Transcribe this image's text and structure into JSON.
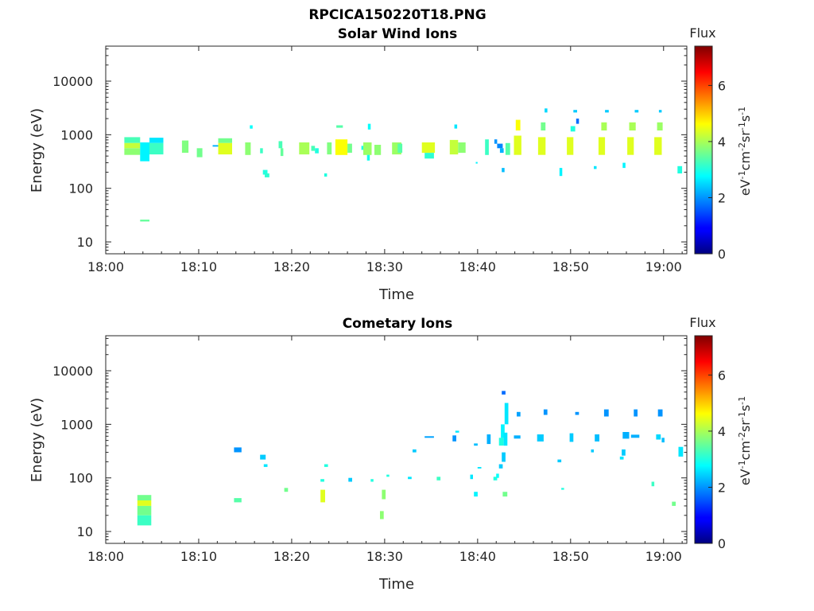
{
  "figure_title": "RPCICA150220T18.PNG",
  "chart_data": [
    {
      "type": "heatmap",
      "title": "Solar Wind Ions",
      "xlabel": "Time",
      "ylabel": "Energy (eV)",
      "x_ticks": [
        "18:00",
        "18:10",
        "18:20",
        "18:30",
        "18:40",
        "18:50",
        "19:00"
      ],
      "x_range_minutes": [
        0,
        62.5
      ],
      "y_scale": "log",
      "y_range": [
        6,
        45000
      ],
      "y_ticks": [
        {
          "value": 10,
          "label": "10"
        },
        {
          "value": 100,
          "label": "100"
        },
        {
          "value": 1000,
          "label": "1000"
        },
        {
          "value": 10000,
          "label": "10000"
        }
      ],
      "colorbar": {
        "title": "Flux",
        "label": "eV-1cm-2sr-1s-1",
        "min": 0,
        "max": 7.4,
        "ticks": [
          0,
          2,
          4,
          6
        ]
      },
      "cells": [
        [
          2,
          3.7,
          900,
          700,
          3.3
        ],
        [
          2,
          3.7,
          700,
          560,
          4.2
        ],
        [
          2,
          3.7,
          560,
          420,
          3.8
        ],
        [
          3.7,
          4.7,
          720,
          320,
          2.7
        ],
        [
          3.7,
          4.7,
          26,
          24,
          3.5
        ],
        [
          4.7,
          6.2,
          880,
          700,
          2.6
        ],
        [
          4.7,
          6.2,
          700,
          430,
          3.2
        ],
        [
          8.2,
          8.9,
          780,
          460,
          3.7
        ],
        [
          9.8,
          10.4,
          560,
          380,
          3.6
        ],
        [
          11.5,
          12.1,
          640,
          600,
          2.2
        ],
        [
          12.1,
          13.6,
          860,
          700,
          3.6
        ],
        [
          12.1,
          13.6,
          700,
          430,
          4.4
        ],
        [
          15,
          15.6,
          720,
          420,
          3.8
        ],
        [
          15.5,
          15.8,
          1500,
          1300,
          2.8
        ],
        [
          16.6,
          16.9,
          560,
          450,
          3.2
        ],
        [
          16.9,
          17.4,
          220,
          180,
          3.0
        ],
        [
          17.1,
          17.6,
          190,
          160,
          3.1
        ],
        [
          18.6,
          19.0,
          760,
          560,
          3.3
        ],
        [
          18.8,
          19.1,
          560,
          400,
          3.5
        ],
        [
          20.8,
          21.9,
          720,
          430,
          4.0
        ],
        [
          22.1,
          22.5,
          620,
          500,
          3.3
        ],
        [
          22.5,
          22.9,
          560,
          450,
          3.0
        ],
        [
          23.5,
          23.8,
          190,
          165,
          3.0
        ],
        [
          23.8,
          24.3,
          720,
          430,
          3.7
        ],
        [
          24.7,
          26.0,
          820,
          420,
          4.6
        ],
        [
          24.8,
          25.5,
          1500,
          1350,
          3.4
        ],
        [
          26.0,
          26.5,
          680,
          460,
          3.6
        ],
        [
          27.5,
          27.9,
          620,
          520,
          3.0
        ],
        [
          27.7,
          28.6,
          720,
          420,
          3.9
        ],
        [
          28.2,
          28.5,
          1600,
          1250,
          2.8
        ],
        [
          28.1,
          28.4,
          420,
          330,
          2.9
        ],
        [
          28.9,
          29.6,
          650,
          420,
          3.8
        ],
        [
          30.8,
          31.8,
          720,
          430,
          3.9
        ],
        [
          31.4,
          31.9,
          680,
          460,
          3.4
        ],
        [
          34.0,
          35.4,
          720,
          460,
          4.4
        ],
        [
          34.3,
          35.3,
          460,
          360,
          3.1
        ],
        [
          37.0,
          37.9,
          800,
          430,
          4.2
        ],
        [
          37.5,
          37.8,
          1550,
          1300,
          2.6
        ],
        [
          37.9,
          38.7,
          720,
          460,
          3.8
        ],
        [
          39.8,
          40.0,
          310,
          290,
          2.7
        ],
        [
          40.8,
          41.2,
          820,
          420,
          3.2
        ],
        [
          41.8,
          42.1,
          820,
          680,
          2.0
        ],
        [
          42.1,
          42.7,
          680,
          560,
          1.9
        ],
        [
          42.4,
          42.8,
          560,
          460,
          2.2
        ],
        [
          42.6,
          42.9,
          240,
          200,
          2.3
        ],
        [
          43.0,
          43.5,
          700,
          420,
          3.4
        ],
        [
          43.9,
          44.7,
          960,
          420,
          4.4
        ],
        [
          44.1,
          44.6,
          1900,
          1200,
          4.6
        ],
        [
          46.5,
          47.3,
          900,
          420,
          4.4
        ],
        [
          46.8,
          47.3,
          1700,
          1200,
          3.6
        ],
        [
          47.2,
          47.5,
          3100,
          2600,
          2.5
        ],
        [
          48.8,
          49.1,
          240,
          170,
          2.7
        ],
        [
          49.6,
          50.3,
          900,
          420,
          4.4
        ],
        [
          50.0,
          50.5,
          1450,
          1150,
          3.0
        ],
        [
          50.6,
          50.9,
          2000,
          1600,
          1.7
        ],
        [
          50.3,
          50.7,
          2900,
          2600,
          2.4
        ],
        [
          52.5,
          52.8,
          260,
          230,
          2.6
        ],
        [
          53.0,
          53.7,
          900,
          420,
          4.4
        ],
        [
          53.3,
          53.9,
          1700,
          1200,
          4.0
        ],
        [
          53.7,
          54.1,
          2900,
          2600,
          2.4
        ],
        [
          55.6,
          55.9,
          300,
          240,
          2.7
        ],
        [
          56.1,
          56.8,
          900,
          420,
          4.4
        ],
        [
          56.3,
          57.0,
          1700,
          1200,
          4.0
        ],
        [
          56.9,
          57.3,
          2900,
          2600,
          2.4
        ],
        [
          59.0,
          59.8,
          900,
          420,
          4.4
        ],
        [
          59.3,
          59.9,
          1700,
          1200,
          3.9
        ],
        [
          59.5,
          59.8,
          2900,
          2600,
          2.4
        ],
        [
          61.5,
          62.0,
          260,
          190,
          3.0
        ]
      ]
    },
    {
      "type": "heatmap",
      "title": "Cometary Ions",
      "xlabel": "Time",
      "ylabel": "Energy (eV)",
      "x_ticks": [
        "18:00",
        "18:10",
        "18:20",
        "18:30",
        "18:40",
        "18:50",
        "19:00"
      ],
      "x_range_minutes": [
        0,
        62.5
      ],
      "y_scale": "log",
      "y_range": [
        6,
        45000
      ],
      "y_ticks": [
        {
          "value": 10,
          "label": "10"
        },
        {
          "value": 100,
          "label": "100"
        },
        {
          "value": 1000,
          "label": "1000"
        },
        {
          "value": 10000,
          "label": "10000"
        }
      ],
      "colorbar": {
        "title": "Flux",
        "label": "eV-1cm-2sr-1s-1",
        "min": 0,
        "max": 7.4,
        "ticks": [
          0,
          2,
          4,
          6
        ]
      },
      "cells": [
        [
          3.4,
          4.9,
          48,
          38,
          3.6
        ],
        [
          3.4,
          4.9,
          38,
          30,
          4.4
        ],
        [
          3.4,
          4.9,
          30,
          20,
          3.6
        ],
        [
          3.4,
          4.9,
          20,
          13,
          3.2
        ],
        [
          13.8,
          14.6,
          370,
          300,
          2.0
        ],
        [
          13.8,
          14.6,
          42,
          35,
          3.4
        ],
        [
          16.6,
          17.2,
          270,
          220,
          2.4
        ],
        [
          17.0,
          17.4,
          180,
          160,
          2.6
        ],
        [
          19.2,
          19.6,
          65,
          55,
          3.6
        ],
        [
          23.1,
          23.5,
          95,
          85,
          3.0
        ],
        [
          23.1,
          23.6,
          60,
          35,
          4.4
        ],
        [
          23.5,
          23.9,
          180,
          160,
          3.0
        ],
        [
          26.1,
          26.5,
          100,
          85,
          2.4
        ],
        [
          28.5,
          28.8,
          95,
          85,
          3.0
        ],
        [
          29.7,
          30.1,
          60,
          40,
          3.8
        ],
        [
          29.5,
          29.9,
          24,
          17,
          3.8
        ],
        [
          30.2,
          30.5,
          115,
          105,
          3.0
        ],
        [
          32.5,
          32.9,
          105,
          95,
          2.6
        ],
        [
          33.0,
          33.4,
          340,
          300,
          2.4
        ],
        [
          34.3,
          35.3,
          600,
          560,
          2.1
        ],
        [
          35.6,
          36.0,
          105,
          90,
          3.2
        ],
        [
          37.3,
          37.7,
          620,
          480,
          2.0
        ],
        [
          37.6,
          38.0,
          760,
          700,
          2.6
        ],
        [
          39.2,
          39.5,
          115,
          95,
          2.6
        ],
        [
          39.6,
          40.0,
          55,
          45,
          2.7
        ],
        [
          39.6,
          40.0,
          440,
          400,
          2.3
        ],
        [
          40.0,
          40.4,
          160,
          150,
          2.6
        ],
        [
          41.0,
          41.4,
          650,
          430,
          2.2
        ],
        [
          41.7,
          42.1,
          105,
          90,
          3.0
        ],
        [
          42.0,
          42.3,
          120,
          100,
          2.8
        ],
        [
          42.3,
          42.7,
          180,
          150,
          2.4
        ],
        [
          42.3,
          42.8,
          560,
          400,
          3.0
        ],
        [
          42.5,
          42.9,
          1000,
          560,
          2.7
        ],
        [
          42.6,
          43.0,
          300,
          200,
          2.4
        ],
        [
          42.8,
          43.2,
          700,
          400,
          2.6
        ],
        [
          42.9,
          43.3,
          2500,
          1000,
          2.6
        ],
        [
          42.6,
          43.0,
          4200,
          3600,
          1.7
        ],
        [
          42.7,
          43.2,
          55,
          45,
          3.6
        ],
        [
          43.9,
          44.6,
          620,
          540,
          2.2
        ],
        [
          44.2,
          44.6,
          1700,
          1400,
          2.1
        ],
        [
          46.4,
          47.1,
          650,
          480,
          2.4
        ],
        [
          47.1,
          47.5,
          1900,
          1500,
          2.0
        ],
        [
          48.6,
          49.0,
          220,
          195,
          2.4
        ],
        [
          49.9,
          50.3,
          680,
          470,
          2.4
        ],
        [
          50.5,
          50.9,
          1700,
          1500,
          2.0
        ],
        [
          49.0,
          49.3,
          65,
          60,
          3.0
        ],
        [
          52.2,
          52.5,
          340,
          300,
          2.4
        ],
        [
          52.6,
          53.1,
          650,
          480,
          2.3
        ],
        [
          53.6,
          54.1,
          1900,
          1400,
          2.0
        ],
        [
          55.3,
          55.7,
          250,
          220,
          2.6
        ],
        [
          55.5,
          55.9,
          340,
          260,
          2.4
        ],
        [
          55.6,
          56.3,
          720,
          540,
          2.2
        ],
        [
          56.5,
          57.4,
          640,
          560,
          2.2
        ],
        [
          56.8,
          57.2,
          1900,
          1400,
          2.0
        ],
        [
          58.7,
          59.0,
          85,
          70,
          3.2
        ],
        [
          59.2,
          59.7,
          650,
          520,
          2.5
        ],
        [
          59.4,
          59.9,
          1900,
          1400,
          2.0
        ],
        [
          59.8,
          60.1,
          560,
          460,
          2.3
        ],
        [
          60.9,
          61.3,
          36,
          30,
          3.6
        ],
        [
          61.6,
          62.1,
          380,
          250,
          2.6
        ]
      ]
    }
  ]
}
